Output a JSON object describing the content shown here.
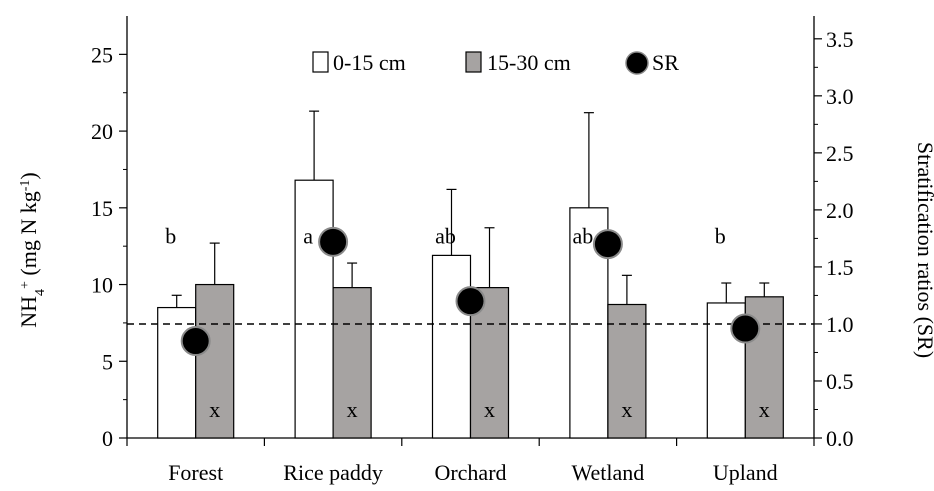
{
  "chart_data": {
    "type": "bar",
    "categories": [
      "Forest",
      "Rice paddy",
      "Orchard",
      "Wetland",
      "Upland"
    ],
    "series": [
      {
        "name": "0-15 cm",
        "values": [
          8.5,
          16.8,
          11.9,
          15.0,
          8.8
        ],
        "errors": [
          0.8,
          4.5,
          4.3,
          6.2,
          1.3
        ],
        "color": "#ffffff"
      },
      {
        "name": "15-30 cm",
        "values": [
          10.0,
          9.8,
          9.8,
          8.7,
          9.2
        ],
        "errors": [
          2.7,
          1.6,
          3.9,
          1.9,
          0.9
        ],
        "color": "#a6a3a2"
      }
    ],
    "sr": {
      "name": "SR",
      "values": [
        0.85,
        1.72,
        1.2,
        1.7,
        0.96
      ]
    },
    "letters_0_15": [
      "b",
      "a",
      "ab",
      "ab",
      "b"
    ],
    "letters_15_30": [
      "x",
      "x",
      "x",
      "x",
      "x"
    ],
    "y_left": {
      "label_main": "NH",
      "label_sub": "4",
      "label_sup": "+",
      "label_rest": " (mg N kg",
      "label_rest_sup": "-1",
      "label_close": ")",
      "min": 0,
      "max": 27.5,
      "ticks": [
        0,
        5,
        10,
        15,
        20,
        25
      ]
    },
    "y_right": {
      "label": "Stratification ratios (SR)",
      "min": 0,
      "max": 3.7,
      "ticks": [
        "0.0",
        "0.5",
        "1.0",
        "1.5",
        "2.0",
        "2.5",
        "3.0",
        "3.5"
      ]
    },
    "reference_line": {
      "axis": "right",
      "value": 1.0,
      "style": "dashed"
    },
    "legend": {
      "placement": "top-center"
    },
    "grid": false
  }
}
